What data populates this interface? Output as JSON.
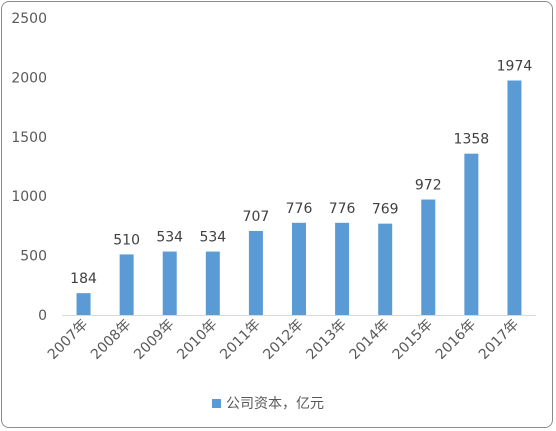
{
  "chart_data": {
    "type": "bar",
    "categories": [
      "2007年",
      "2008年",
      "2009年",
      "2010年",
      "2011年",
      "2012年",
      "2013年",
      "2014年",
      "2015年",
      "2016年",
      "2017年"
    ],
    "series": [
      {
        "name": "公司资本，亿元",
        "values": [
          184,
          510,
          534,
          534,
          707,
          776,
          776,
          769,
          972,
          1358,
          1974
        ],
        "color": "#5B9BD5"
      }
    ],
    "ylim": [
      0,
      2500
    ],
    "yticks": [
      "0",
      "500",
      "1000",
      "1500",
      "2000",
      "2500"
    ],
    "data_labels": [
      "184",
      "510",
      "534",
      "534",
      "707",
      "776",
      "776",
      "769",
      "972",
      "1358",
      "1974"
    ],
    "grid": false,
    "legend_position": "bottom"
  }
}
